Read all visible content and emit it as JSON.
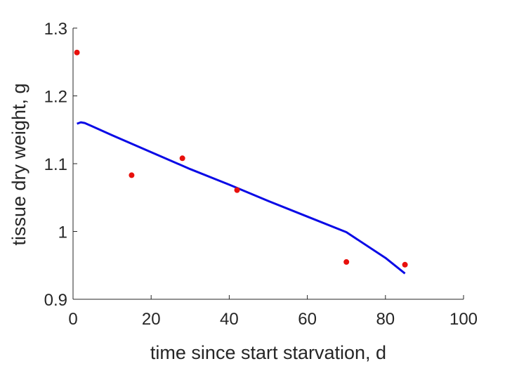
{
  "chart_data": {
    "type": "line",
    "title": "",
    "xlabel": "time since start starvation, d",
    "ylabel": "tissue dry weight, g",
    "xlim": [
      0,
      100
    ],
    "ylim": [
      0.9,
      1.3
    ],
    "x_ticks": [
      0,
      20,
      40,
      60,
      80,
      100
    ],
    "y_ticks": [
      0.9,
      1,
      1.1,
      1.2,
      1.3
    ],
    "x_tick_labels": [
      "0",
      "20",
      "40",
      "60",
      "80",
      "100"
    ],
    "y_tick_labels": [
      "0.9",
      "1",
      "1.1",
      "1.2",
      "1.3"
    ],
    "grid": false,
    "legend": "none",
    "series": [
      {
        "kind": "scatter",
        "color": "#e8100c",
        "x": [
          1,
          15,
          28,
          42,
          70,
          85
        ],
        "y": [
          1.264,
          1.083,
          1.108,
          1.061,
          0.955,
          0.951
        ]
      },
      {
        "kind": "line",
        "color": "#0a0ae6",
        "x": [
          1,
          2,
          3,
          10,
          20,
          30,
          40,
          50,
          60,
          70,
          80,
          85
        ],
        "y": [
          1.159,
          1.161,
          1.16,
          1.142,
          1.117,
          1.092,
          1.069,
          1.045,
          1.022,
          0.999,
          0.961,
          0.938
        ]
      }
    ]
  }
}
